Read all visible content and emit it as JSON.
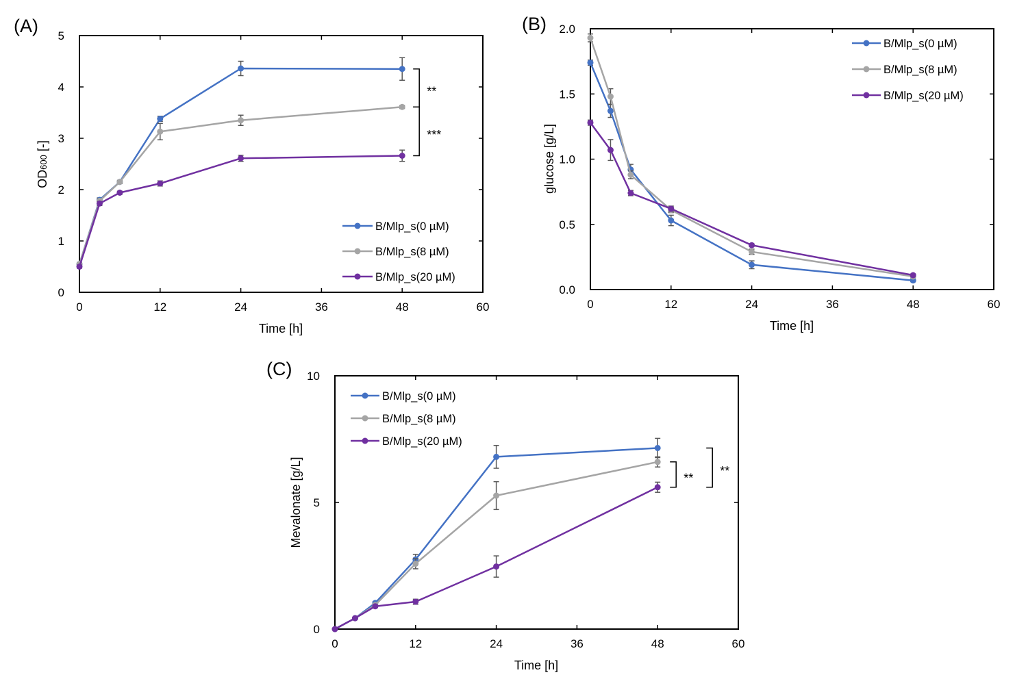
{
  "colors": {
    "B/Mlp_s(0 µM)": "#4472C4",
    "B/Mlp_s(8 µM)": "#A5A5A5",
    "B/Mlp_s(20 µM)": "#7030A0",
    "error_bar": "#595959"
  },
  "chart_data": [
    {
      "panel": "(A)",
      "type": "line",
      "xlabel": "Time [h]",
      "ylabel": "OD600 [-]",
      "ylabel_main": "OD",
      "ylabel_sub": "600",
      "ylabel_tail": " [-]",
      "xlim": [
        0,
        60
      ],
      "ylim": [
        0,
        5
      ],
      "xticks": [
        0,
        12,
        24,
        36,
        48,
        60
      ],
      "yticks": [
        0,
        1,
        2,
        3,
        4,
        5
      ],
      "ytick_labels": [
        "0",
        "1",
        "2",
        "3",
        "4",
        "5"
      ],
      "legend_position": "bottom-right",
      "x": [
        0,
        3,
        6,
        12,
        24,
        48
      ],
      "series": [
        {
          "name": "B/Mlp_s(0 µM)",
          "values": [
            0.55,
            1.8,
            2.15,
            3.38,
            4.36,
            4.35
          ],
          "errors": [
            0.03,
            0.04,
            0.03,
            0.05,
            0.14,
            0.22
          ]
        },
        {
          "name": "B/Mlp_s(8 µM)",
          "values": [
            0.55,
            1.78,
            2.15,
            3.13,
            3.35,
            3.61
          ],
          "errors": [
            0.03,
            0.04,
            0.03,
            0.16,
            0.1,
            0.03
          ]
        },
        {
          "name": "B/Mlp_s(20 µM)",
          "values": [
            0.5,
            1.73,
            1.94,
            2.12,
            2.61,
            2.66
          ],
          "errors": [
            0.03,
            0.04,
            0.03,
            0.05,
            0.06,
            0.11
          ]
        }
      ],
      "annotations": [
        {
          "text": "**",
          "between": [
            "B/Mlp_s(0 µM)",
            "B/Mlp_s(8 µM)"
          ],
          "x": 48
        },
        {
          "text": "***",
          "between": [
            "B/Mlp_s(8 µM)",
            "B/Mlp_s(20 µM)"
          ],
          "x": 48
        }
      ]
    },
    {
      "panel": "(B)",
      "type": "line",
      "xlabel": "Time [h]",
      "ylabel": "glucose [g/L]",
      "xlim": [
        0,
        60
      ],
      "ylim": [
        0,
        2
      ],
      "xticks": [
        0,
        12,
        24,
        36,
        48,
        60
      ],
      "yticks": [
        0,
        0.5,
        1,
        1.5,
        2
      ],
      "ytick_labels": [
        "0.0",
        "0.5",
        "1.0",
        "1.5",
        "2.0"
      ],
      "legend_position": "top-right",
      "x": [
        0,
        3,
        6,
        12,
        24,
        48
      ],
      "series": [
        {
          "name": "B/Mlp_s(0 µM)",
          "values": [
            1.74,
            1.37,
            0.92,
            0.53,
            0.19,
            0.07
          ],
          "errors": [
            0.02,
            0.05,
            0.04,
            0.04,
            0.03,
            0.01
          ]
        },
        {
          "name": "B/Mlp_s(8 µM)",
          "values": [
            1.93,
            1.48,
            0.88,
            0.61,
            0.29,
            0.1
          ],
          "errors": [
            0.03,
            0.06,
            0.03,
            0.02,
            0.02,
            0.01
          ]
        },
        {
          "name": "B/Mlp_s(20 µM)",
          "values": [
            1.28,
            1.07,
            0.74,
            0.62,
            0.34,
            0.11
          ],
          "errors": [
            0.02,
            0.08,
            0.02,
            0.02,
            0.01,
            0.01
          ]
        }
      ]
    },
    {
      "panel": "(C)",
      "type": "line",
      "xlabel": "Time [h]",
      "ylabel": "Mevalonate [g/L]",
      "xlim": [
        0,
        60
      ],
      "ylim": [
        0,
        10
      ],
      "xticks": [
        0,
        12,
        24,
        36,
        48,
        60
      ],
      "yticks": [
        0,
        5,
        10
      ],
      "ytick_labels": [
        "0",
        "5",
        "10"
      ],
      "legend_position": "top-left",
      "x": [
        0,
        3,
        6,
        12,
        24,
        48
      ],
      "series": [
        {
          "name": "B/Mlp_s(0 µM)",
          "values": [
            0,
            0.43,
            1.03,
            2.75,
            6.8,
            7.15
          ],
          "errors": [
            0.02,
            0.04,
            0.06,
            0.2,
            0.45,
            0.38
          ]
        },
        {
          "name": "B/Mlp_s(8 µM)",
          "values": [
            0,
            0.43,
            0.95,
            2.58,
            5.27,
            6.6
          ],
          "errors": [
            0.02,
            0.04,
            0.06,
            0.2,
            0.55,
            0.2
          ]
        },
        {
          "name": "B/Mlp_s(20 µM)",
          "values": [
            0,
            0.43,
            0.9,
            1.08,
            2.47,
            5.6
          ],
          "errors": [
            0.02,
            0.04,
            0.05,
            0.1,
            0.42,
            0.2
          ]
        }
      ],
      "annotations": [
        {
          "text": "**",
          "between": [
            "B/Mlp_s(8 µM)",
            "B/Mlp_s(20 µM)"
          ],
          "x": 48
        },
        {
          "text": "**",
          "between": [
            "B/Mlp_s(0 µM)",
            "B/Mlp_s(20 µM)"
          ],
          "x": 48
        }
      ]
    }
  ]
}
